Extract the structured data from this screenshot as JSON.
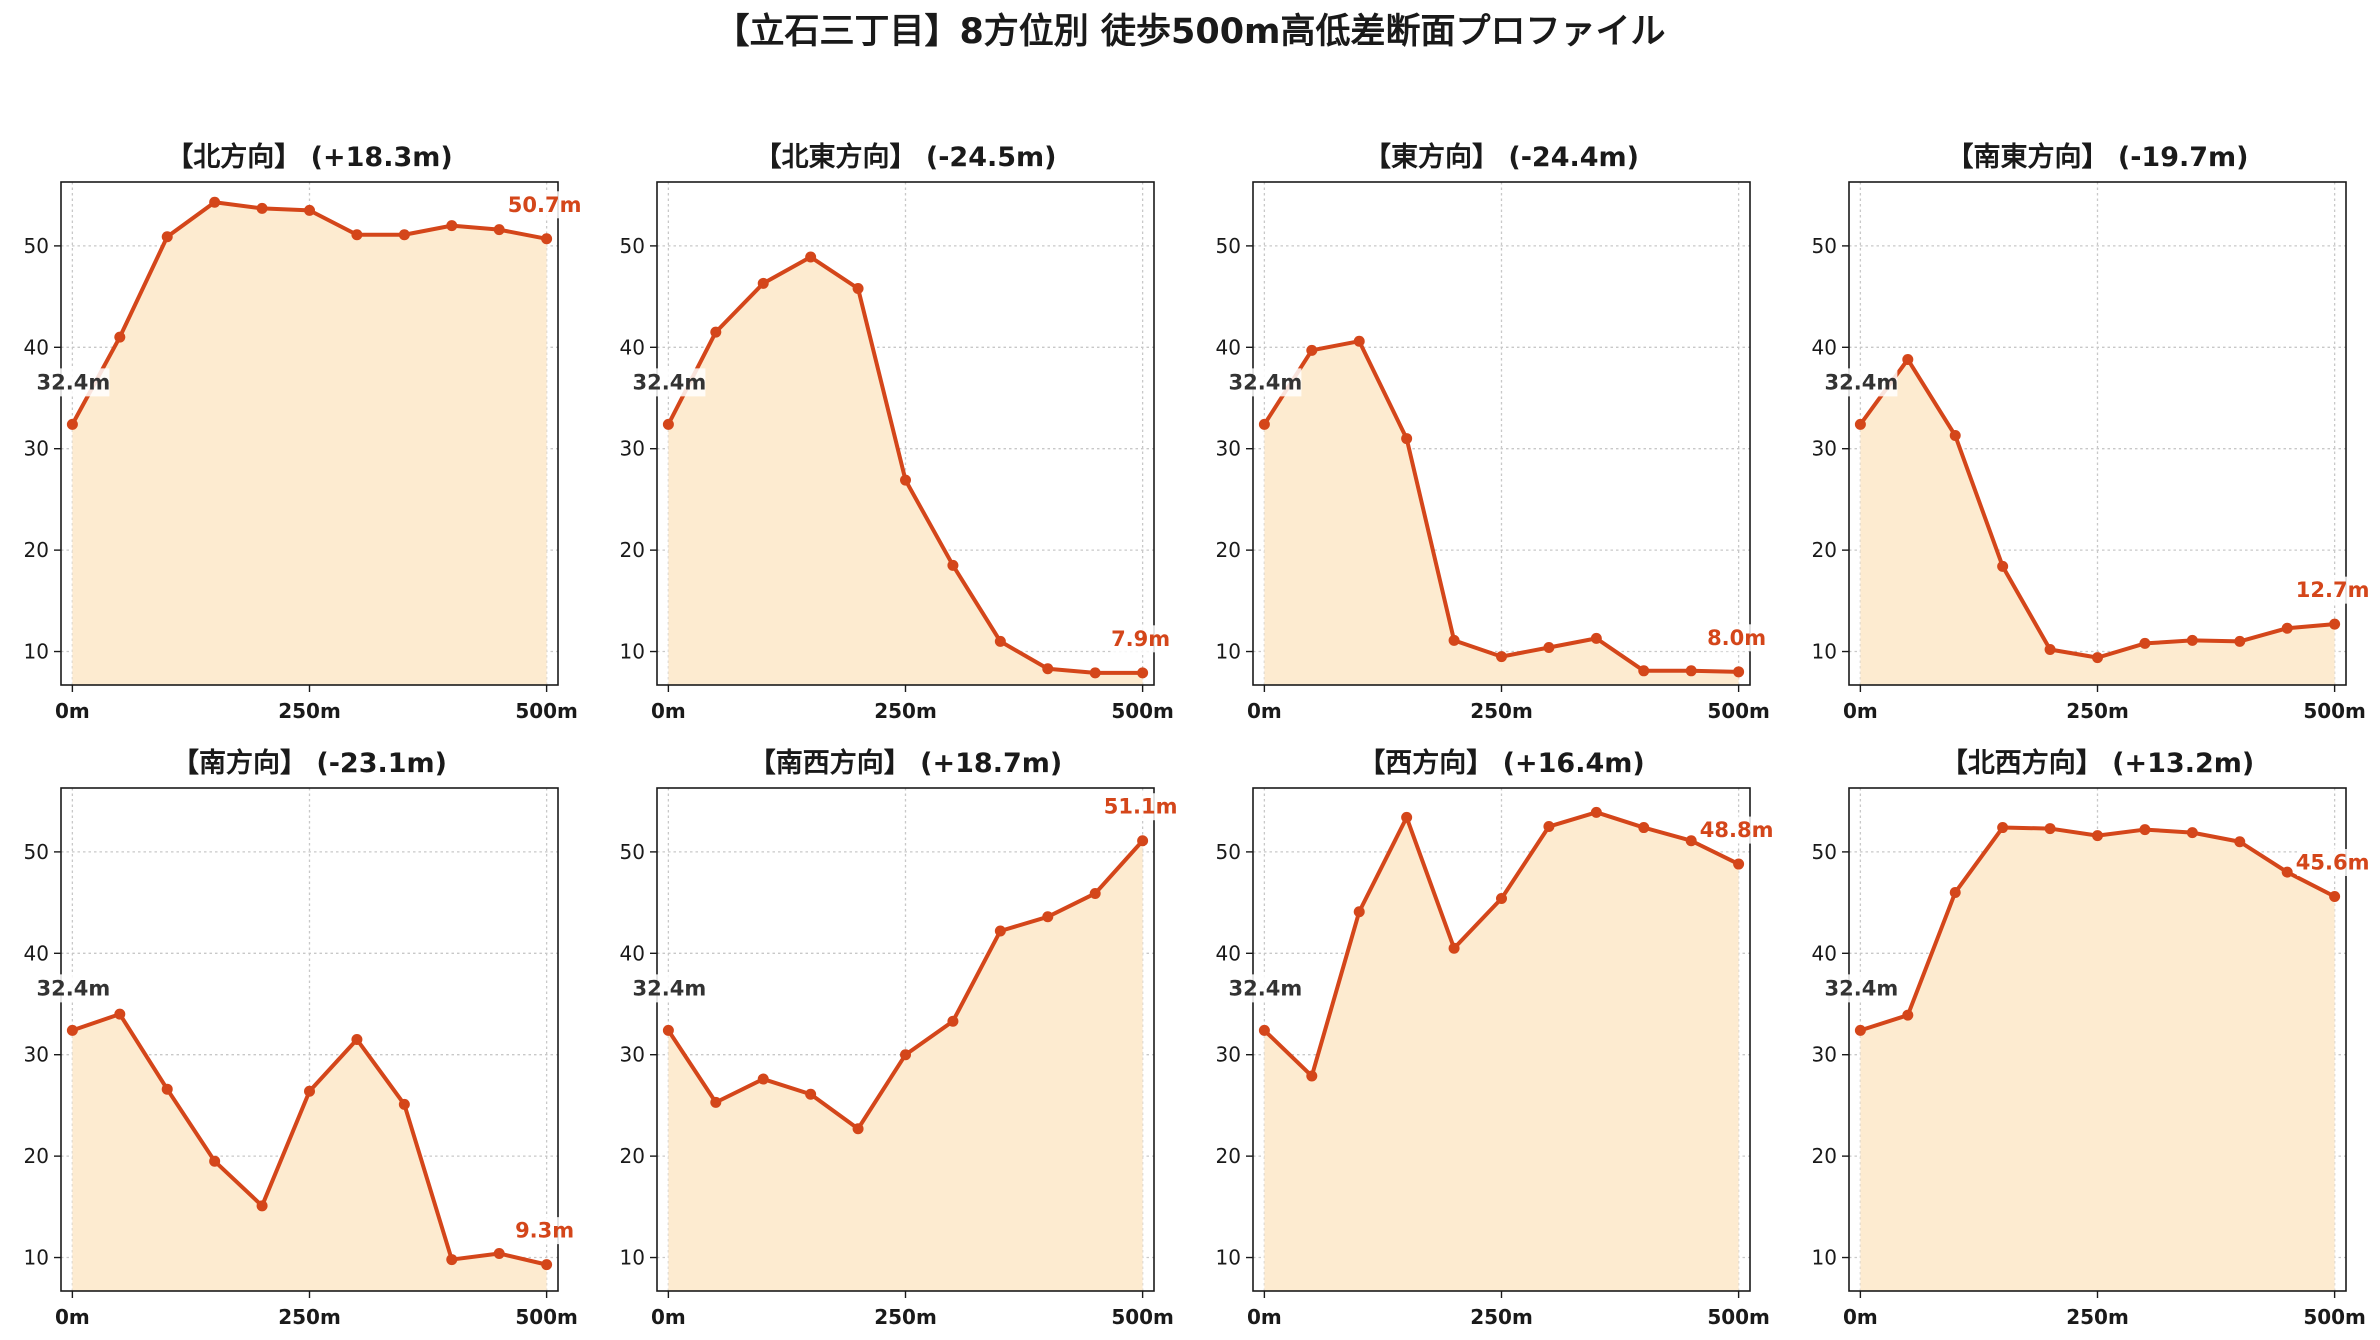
{
  "title": "【立石三丁目】8方位別 徒歩500m高低差断面プロファイル",
  "colors": {
    "line": "#d4461a",
    "fill": "#fdebd0",
    "grid": "#c8c8c8",
    "axis": "#1a1a1a",
    "start_label": "#333333",
    "end_label": "#d4461a"
  },
  "x_ticks": [
    {
      "value": 0,
      "label": "0m"
    },
    {
      "value": 250,
      "label": "250m"
    },
    {
      "value": 500,
      "label": "500m"
    }
  ],
  "y_ticks": [
    10,
    20,
    30,
    40,
    50
  ],
  "chart_data": [
    {
      "type": "area",
      "title": "【北方向】 (+18.3m)",
      "xlim": [
        -12,
        512
      ],
      "ylim": [
        6.7,
        56.3
      ],
      "grid": true,
      "x": [
        0,
        50,
        100,
        150,
        200,
        250,
        300,
        350,
        400,
        450,
        500
      ],
      "values": [
        32.4,
        41.0,
        50.9,
        54.3,
        53.7,
        53.5,
        51.1,
        51.1,
        52.0,
        51.6,
        50.7
      ],
      "start_label": "32.4m",
      "end_label": "50.7m"
    },
    {
      "type": "area",
      "title": "【北東方向】 (-24.5m)",
      "xlim": [
        -12,
        512
      ],
      "ylim": [
        6.7,
        56.3
      ],
      "grid": true,
      "x": [
        0,
        50,
        100,
        150,
        200,
        250,
        300,
        350,
        400,
        450,
        500
      ],
      "values": [
        32.4,
        41.5,
        46.3,
        48.9,
        45.8,
        26.9,
        18.5,
        11.0,
        8.3,
        7.9,
        7.9
      ],
      "start_label": "32.4m",
      "end_label": "7.9m"
    },
    {
      "type": "area",
      "title": "【東方向】 (-24.4m)",
      "xlim": [
        -12,
        512
      ],
      "ylim": [
        6.7,
        56.3
      ],
      "grid": true,
      "x": [
        0,
        50,
        100,
        150,
        200,
        250,
        300,
        350,
        400,
        450,
        500
      ],
      "values": [
        32.4,
        39.7,
        40.6,
        31.0,
        11.1,
        9.5,
        10.4,
        11.3,
        8.1,
        8.1,
        8.0
      ],
      "start_label": "32.4m",
      "end_label": "8.0m"
    },
    {
      "type": "area",
      "title": "【南東方向】 (-19.7m)",
      "xlim": [
        -12,
        512
      ],
      "ylim": [
        6.7,
        56.3
      ],
      "grid": true,
      "x": [
        0,
        50,
        100,
        150,
        200,
        250,
        300,
        350,
        400,
        450,
        500
      ],
      "values": [
        32.4,
        38.8,
        31.3,
        18.4,
        10.2,
        9.4,
        10.8,
        11.1,
        11.0,
        12.3,
        12.7
      ],
      "start_label": "32.4m",
      "end_label": "12.7m"
    },
    {
      "type": "area",
      "title": "【南方向】 (-23.1m)",
      "xlim": [
        -12,
        512
      ],
      "ylim": [
        6.7,
        56.3
      ],
      "grid": true,
      "x": [
        0,
        50,
        100,
        150,
        200,
        250,
        300,
        350,
        400,
        450,
        500
      ],
      "values": [
        32.4,
        34.0,
        26.6,
        19.5,
        15.1,
        26.4,
        31.5,
        25.1,
        9.8,
        10.4,
        9.3
      ],
      "start_label": "32.4m",
      "end_label": "9.3m"
    },
    {
      "type": "area",
      "title": "【南西方向】 (+18.7m)",
      "xlim": [
        -12,
        512
      ],
      "ylim": [
        6.7,
        56.3
      ],
      "grid": true,
      "x": [
        0,
        50,
        100,
        150,
        200,
        250,
        300,
        350,
        400,
        450,
        500
      ],
      "values": [
        32.4,
        25.3,
        27.6,
        26.1,
        22.7,
        30.0,
        33.3,
        42.2,
        43.6,
        45.9,
        51.1
      ],
      "start_label": "32.4m",
      "end_label": "51.1m"
    },
    {
      "type": "area",
      "title": "【西方向】 (+16.4m)",
      "xlim": [
        -12,
        512
      ],
      "ylim": [
        6.7,
        56.3
      ],
      "grid": true,
      "x": [
        0,
        50,
        100,
        150,
        200,
        250,
        300,
        350,
        400,
        450,
        500
      ],
      "values": [
        32.4,
        27.9,
        44.1,
        53.4,
        40.5,
        45.4,
        52.5,
        53.9,
        52.4,
        51.1,
        48.8
      ],
      "start_label": "32.4m",
      "end_label": "48.8m"
    },
    {
      "type": "area",
      "title": "【北西方向】 (+13.2m)",
      "xlim": [
        -12,
        512
      ],
      "ylim": [
        6.7,
        56.3
      ],
      "grid": true,
      "x": [
        0,
        50,
        100,
        150,
        200,
        250,
        300,
        350,
        400,
        450,
        500
      ],
      "values": [
        32.4,
        33.9,
        46.0,
        52.4,
        52.3,
        51.6,
        52.2,
        51.9,
        51.0,
        48.0,
        45.6
      ],
      "start_label": "32.4m",
      "end_label": "45.6m"
    }
  ]
}
